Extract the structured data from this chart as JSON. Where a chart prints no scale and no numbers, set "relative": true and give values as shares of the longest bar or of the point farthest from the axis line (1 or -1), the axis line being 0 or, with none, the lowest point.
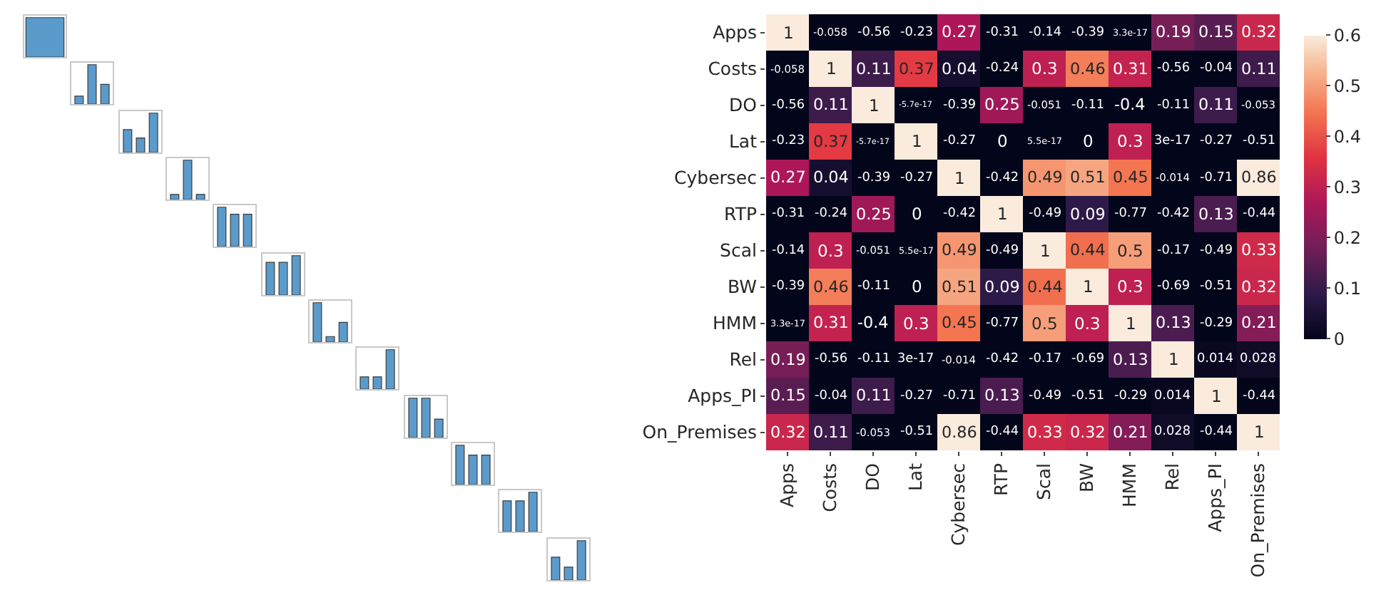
{
  "chart_data": [
    {
      "type": "bar",
      "relative": true,
      "categories": [
        null
      ],
      "values": [
        1
      ],
      "color": "#5b9bcc"
    },
    {
      "type": "bar",
      "relative": true,
      "categories": [
        null,
        null,
        null
      ],
      "values": [
        0.2,
        1,
        0.5
      ],
      "color": "#5b9bcc"
    },
    {
      "type": "bar",
      "relative": true,
      "categories": [
        null,
        null,
        null
      ],
      "values": [
        0.58,
        0.37,
        1
      ],
      "color": "#5b9bcc"
    },
    {
      "type": "bar",
      "relative": true,
      "categories": [
        null,
        null,
        null
      ],
      "values": [
        0.13,
        1,
        0.13
      ],
      "color": "#5b9bcc"
    },
    {
      "type": "bar",
      "relative": true,
      "categories": [
        null,
        null,
        null
      ],
      "values": [
        1,
        0.82,
        0.82
      ],
      "color": "#5b9bcc"
    },
    {
      "type": "bar",
      "relative": true,
      "categories": [
        null,
        null,
        null
      ],
      "values": [
        0.83,
        0.83,
        1
      ],
      "color": "#5b9bcc"
    },
    {
      "type": "bar",
      "relative": true,
      "categories": [
        null,
        null,
        null
      ],
      "values": [
        1,
        0.14,
        0.5
      ],
      "color": "#5b9bcc"
    },
    {
      "type": "bar",
      "relative": true,
      "categories": [
        null,
        null,
        null
      ],
      "values": [
        0.31,
        0.31,
        1
      ],
      "color": "#5b9bcc"
    },
    {
      "type": "bar",
      "relative": true,
      "categories": [
        null,
        null,
        null
      ],
      "values": [
        1,
        1,
        0.47
      ],
      "color": "#5b9bcc"
    },
    {
      "type": "bar",
      "relative": true,
      "categories": [
        null,
        null,
        null
      ],
      "values": [
        1,
        0.75,
        0.75
      ],
      "color": "#5b9bcc"
    },
    {
      "type": "bar",
      "relative": true,
      "categories": [
        null,
        null,
        null
      ],
      "values": [
        0.78,
        0.78,
        1
      ],
      "color": "#5b9bcc"
    },
    {
      "type": "bar",
      "relative": true,
      "categories": [
        null,
        null,
        null
      ],
      "values": [
        0.58,
        0.33,
        1
      ],
      "color": "#5b9bcc"
    },
    {
      "type": "heatmap",
      "categories": [
        "Apps",
        "Costs",
        "DO",
        "Lat",
        "Cybersec",
        "RTP",
        "Scal",
        "BW",
        "HMM",
        "Rel",
        "Apps_PI",
        "On_Premises"
      ],
      "y_categories": [
        "Apps",
        "Costs",
        "DO",
        "Lat",
        "Cybersec",
        "RTP",
        "Scal",
        "BW",
        "HMM",
        "Rel",
        "Apps_PI",
        "On_Premises"
      ],
      "cells": [
        [
          1,
          -0.058,
          -0.56,
          -0.23,
          0.27,
          -0.31,
          -0.14,
          -0.39,
          3.3e-17,
          0.19,
          0.15,
          0.32
        ],
        [
          -0.058,
          1,
          0.11,
          0.37,
          0.04,
          -0.24,
          0.3,
          0.46,
          0.31,
          -0.56,
          -0.04,
          0.11
        ],
        [
          -0.56,
          0.11,
          1,
          -5.7e-17,
          -0.39,
          0.25,
          -0.051,
          -0.11,
          -0.4,
          -0.11,
          0.11,
          -0.053
        ],
        [
          -0.23,
          0.37,
          -5.7e-17,
          1,
          -0.27,
          0,
          5.5e-17,
          0,
          0.3,
          3e-17,
          -0.27,
          -0.51
        ],
        [
          0.27,
          0.04,
          -0.39,
          -0.27,
          1,
          -0.42,
          0.49,
          0.51,
          0.45,
          -0.014,
          -0.71,
          0.86
        ],
        [
          -0.31,
          -0.24,
          0.25,
          0,
          -0.42,
          1,
          -0.49,
          0.09,
          -0.77,
          -0.42,
          0.13,
          -0.44
        ],
        [
          -0.14,
          0.3,
          -0.051,
          5.5e-17,
          0.49,
          -0.49,
          1,
          0.44,
          0.5,
          -0.17,
          -0.49,
          0.33
        ],
        [
          -0.39,
          0.46,
          -0.11,
          0,
          0.51,
          0.09,
          0.44,
          1,
          0.3,
          -0.69,
          -0.51,
          0.32
        ],
        [
          3.3e-17,
          0.31,
          -0.4,
          0.3,
          0.45,
          -0.77,
          0.5,
          0.3,
          1,
          0.13,
          -0.29,
          0.21
        ],
        [
          0.19,
          -0.56,
          -0.11,
          3e-17,
          -0.014,
          -0.42,
          -0.17,
          -0.69,
          0.13,
          1,
          0.014,
          0.028
        ],
        [
          0.15,
          -0.04,
          0.11,
          -0.27,
          -0.71,
          0.13,
          -0.49,
          -0.51,
          -0.29,
          0.014,
          1,
          -0.44
        ],
        [
          0.32,
          0.11,
          -0.053,
          -0.51,
          0.86,
          -0.44,
          0.33,
          0.32,
          0.21,
          0.028,
          -0.44,
          1
        ]
      ],
      "clim": [
        0,
        0.6
      ],
      "cticks": [
        0,
        0.1,
        0.2,
        0.3,
        0.4,
        0.5,
        0.6
      ],
      "data_labels": true
    }
  ]
}
